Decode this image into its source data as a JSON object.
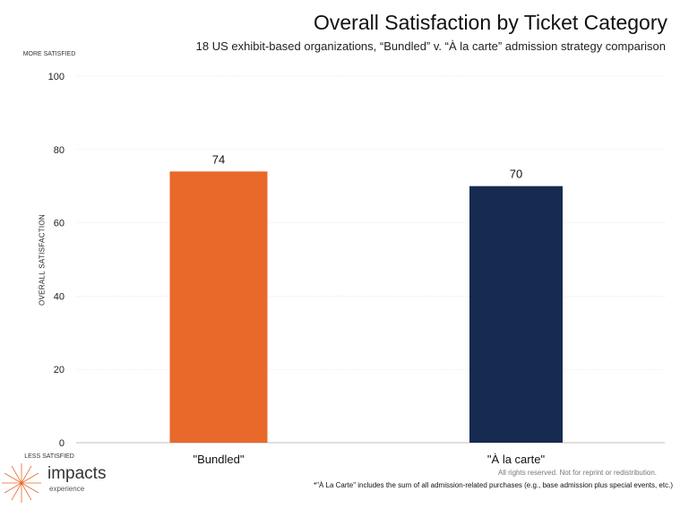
{
  "chart_data": {
    "type": "bar",
    "title": "Overall Satisfaction by Ticket Category",
    "subtitle": "18 US exhibit-based organizations, “Bundled” v. “À la carte” admission strategy comparison",
    "ylabel": "OVERALL SATISFACTION",
    "ylabel_top": "MORE SATISFIED",
    "ylabel_bottom": "LESS SATISFIED",
    "xlabel": "",
    "categories": [
      "\"Bundled\"",
      "\"À la carte\""
    ],
    "values": [
      74,
      70
    ],
    "data_labels": [
      "74",
      "70"
    ],
    "colors": [
      "#E8692A",
      "#172A50"
    ],
    "ylim": [
      0,
      100
    ],
    "yticks": [
      "0",
      "20",
      "40",
      "60",
      "80",
      "100"
    ],
    "grid": true
  },
  "footer": {
    "rights": "All rights reserved. Not for reprint or redistribution.",
    "footnote": "*\"À La Carte\" includes the sum of all admission-related purchases (e.g., base admission plus special events, etc.)"
  },
  "logo": {
    "word": "impacts",
    "sub": "experience",
    "color": "#E8692A"
  }
}
